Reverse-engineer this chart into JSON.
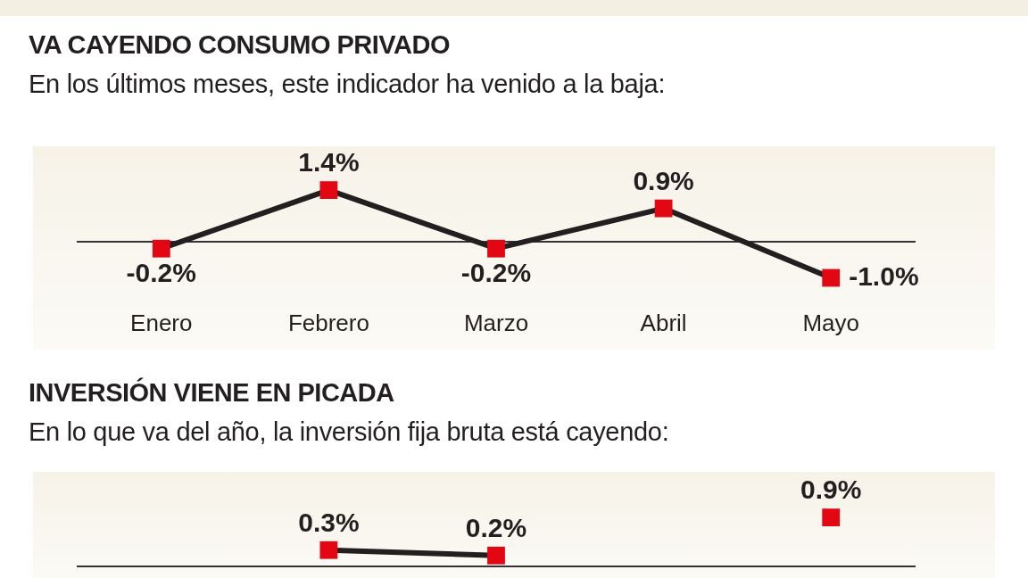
{
  "chart_data": [
    {
      "type": "line",
      "title": "VA CAYENDO CONSUMO PRIVADO",
      "subtitle": "En los últimos meses, este indicador ha venido a la baja:",
      "categories": [
        "Enero",
        "Febrero",
        "Marzo",
        "Abril",
        "Mayo"
      ],
      "series": [
        {
          "color": "#231f20",
          "colors": [
            "#e30613",
            "#e30613",
            "#e30613",
            "#e30613",
            "#e30613"
          ],
          "values": [
            -0.2,
            1.4,
            -0.2,
            0.9,
            -1.0
          ],
          "value_labels": [
            "-0.2%",
            "1.4%",
            "-0.2%",
            "0.9%",
            "-1.0%"
          ]
        }
      ],
      "marker": "square",
      "tick_labels": "x",
      "legend": false,
      "grid": false
    },
    {
      "type": "line",
      "title": "INVERSIÓN VIENE EN PICADA",
      "subtitle": "En lo que va del año, la inversión fija bruta está cayendo:",
      "categories": [
        null,
        null,
        null,
        null,
        null
      ],
      "series": [
        {
          "color": "#231f20",
          "colors": [
            "#e30613",
            "#e30613",
            "#e30613",
            "#e30613",
            "#e30613"
          ],
          "values": [
            null,
            0.3,
            0.2,
            null,
            0.9
          ],
          "value_labels": [
            null,
            "0.3%",
            "0.2%",
            null,
            "0.9%"
          ]
        }
      ],
      "marker": "square",
      "tick_labels": "x",
      "legend": false,
      "grid": false
    }
  ]
}
